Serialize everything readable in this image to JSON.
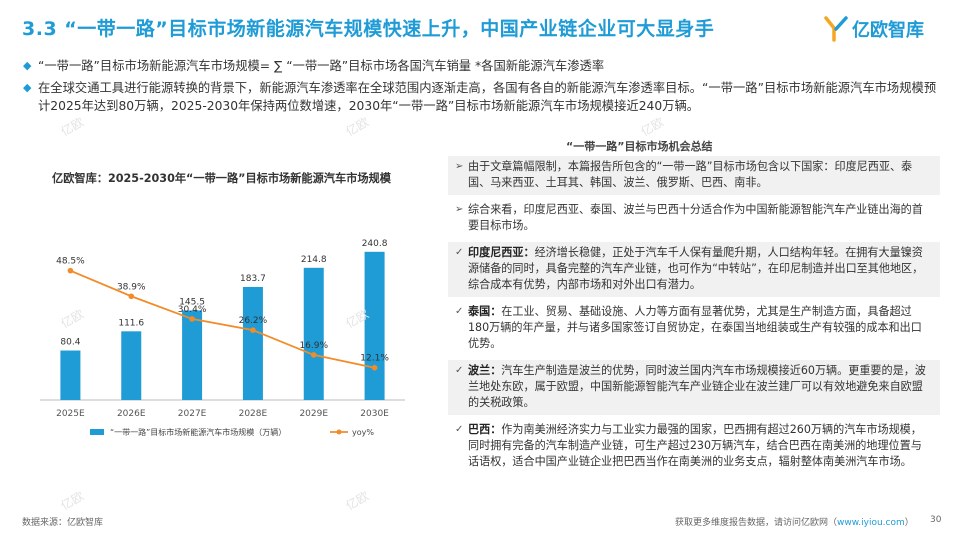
{
  "header": {
    "title": "3.3 “一带一路”目标市场新能源汽车规模快速上升，中国产业链企业可大显身手",
    "logo_text": "亿欧智库"
  },
  "bullets": [
    "“一带一路”目标市场新能源汽车市场规模= ∑ “一带一路”目标市场各国汽车销量 *各国新能源汽车渗透率",
    "在全球交通工具进行能源转换的背景下，新能源汽车渗透率在全球范围内逐渐走高，各国有各自的新能源汽车渗透率目标。“一带一路”目标市场新能源汽车市场规模预计2025年达到80万辆，2025-2030年保持两位数增速，2030年“一带一路”目标市场新能源汽车市场规模接近240万辆。"
  ],
  "chart_data": {
    "type": "bar",
    "title": "亿欧智库：2025-2030年“一带一路”目标市场新能源汽车市场规模",
    "categories": [
      "2025E",
      "2026E",
      "2027E",
      "2028E",
      "2029E",
      "2030E"
    ],
    "series": [
      {
        "name": "“一带一路”目标市场新能源汽车市场规模（万辆）",
        "type": "bar",
        "color": "#1f9bd6",
        "values": [
          80.4,
          111.6,
          145.5,
          183.7,
          214.8,
          240.8
        ],
        "labels": [
          "80.4",
          "111.6",
          "145.5",
          "183.7",
          "214.8",
          "240.8"
        ]
      },
      {
        "name": "yoy%",
        "type": "line",
        "color": "#f28c28",
        "values": [
          48.5,
          38.9,
          30.4,
          26.2,
          16.9,
          12.1
        ],
        "labels": [
          "48.5%",
          "38.9%",
          "30.4%",
          "26.2%",
          "16.9%",
          "12.1%"
        ]
      }
    ],
    "ylim": [
      0,
      260
    ],
    "ylim_secondary": [
      0,
      60
    ],
    "grid": false,
    "legend_position": "bottom"
  },
  "summary": {
    "heading": "“一带一路”目标市场机会总结",
    "items": [
      {
        "marker": "➢",
        "label": "",
        "text": "由于文章篇幅限制，本篇报告所包含的“一带一路”目标市场包含以下国家：印度尼西亚、泰国、马来西亚、土耳其、韩国、波兰、俄罗斯、巴西、南非。"
      },
      {
        "marker": "➢",
        "label": "",
        "text": "综合来看，印度尼西亚、泰国、波兰与巴西十分适合作为中国新能源智能汽车产业链出海的首要目标市场。"
      },
      {
        "marker": "✓",
        "label": "印度尼西亚：",
        "text": "经济增长稳健，正处于汽车千人保有量爬升期，人口结构年轻。在拥有大量镍资源储备的同时，具备完整的汽车产业链，也可作为“中转站”，在印尼制造并出口至其他地区，综合成本有优势，内部市场和对外出口有潜力。"
      },
      {
        "marker": "✓",
        "label": "泰国：",
        "text": "在工业、贸易、基础设施、人力等方面有显著优势，尤其是生产制造方面，具备超过180万辆的年产量，并与诸多国家签订自贸协定，在泰国当地组装或生产有较强的成本和出口优势。"
      },
      {
        "marker": "✓",
        "label": "波兰：",
        "text": "汽车生产制造是波兰的优势，同时波兰国内汽车市场规模接近60万辆。更重要的是，波兰地处东欧，属于欧盟，中国新能源智能汽车产业链企业在波兰建厂可以有效地避免来自欧盟的关税政策。"
      },
      {
        "marker": "✓",
        "label": "巴西：",
        "text": "作为南美洲经济实力与工业实力最强的国家，巴西拥有超过260万辆的汽车市场规模，同时拥有完备的汽车制造产业链，可生产超过230万辆汽车，结合巴西在南美洲的地理位置与话语权，适合中国产业链企业把巴西当作在南美洲的业务支点，辐射整体南美洲汽车市场。"
      }
    ]
  },
  "watermark": "亿欧",
  "footer": {
    "source": "数据来源：亿欧智库",
    "more_text": "获取更多维度报告数据，请访问亿欧网（",
    "url": "www.iyiou.com",
    "close_paren": "）",
    "page": "30"
  }
}
